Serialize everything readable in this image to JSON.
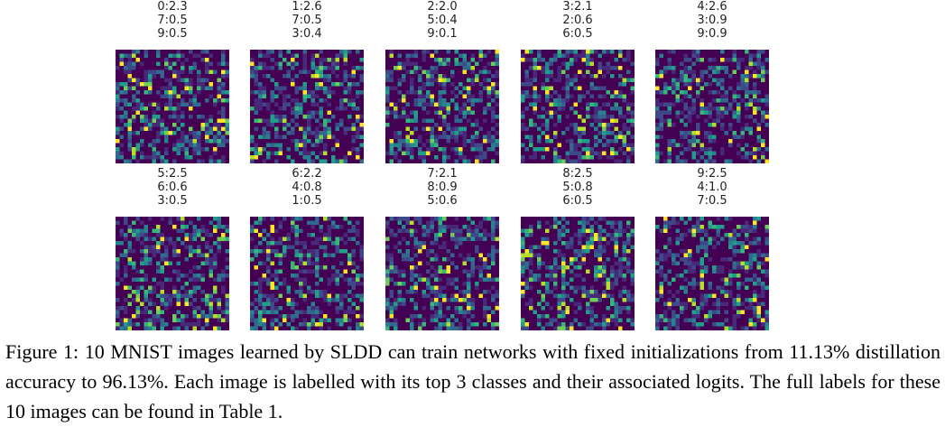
{
  "figure": {
    "images": [
      {
        "logits": [
          "0:2.3",
          "7:0.5",
          "9:0.5"
        ]
      },
      {
        "logits": [
          "1:2.6",
          "7:0.5",
          "3:0.4"
        ]
      },
      {
        "logits": [
          "2:2.0",
          "5:0.4",
          "9:0.1"
        ]
      },
      {
        "logits": [
          "3:2.1",
          "2:0.6",
          "6:0.5"
        ]
      },
      {
        "logits": [
          "4:2.6",
          "3:0.9",
          "9:0.9"
        ]
      },
      {
        "logits": [
          "5:2.5",
          "6:0.6",
          "3:0.5"
        ]
      },
      {
        "logits": [
          "6:2.2",
          "4:0.8",
          "1:0.5"
        ]
      },
      {
        "logits": [
          "7:2.1",
          "8:0.9",
          "5:0.6"
        ]
      },
      {
        "logits": [
          "8:2.5",
          "5:0.8",
          "6:0.5"
        ]
      },
      {
        "logits": [
          "9:2.5",
          "4:1.0",
          "7:0.5"
        ]
      }
    ],
    "colormap": [
      "#440154",
      "#482878",
      "#3e4989",
      "#31688e",
      "#26828e",
      "#1f9e89",
      "#35b779",
      "#6ece58",
      "#b5de2b",
      "#fde725"
    ]
  },
  "caption": {
    "text": "Figure 1: 10 MNIST images learned by SLDD can train networks with fixed initializations from 11.13% distillation accuracy to 96.13%. Each image is labelled with its top 3 classes and their associated logits. The full labels for these 10 images can be found in Table 1."
  }
}
